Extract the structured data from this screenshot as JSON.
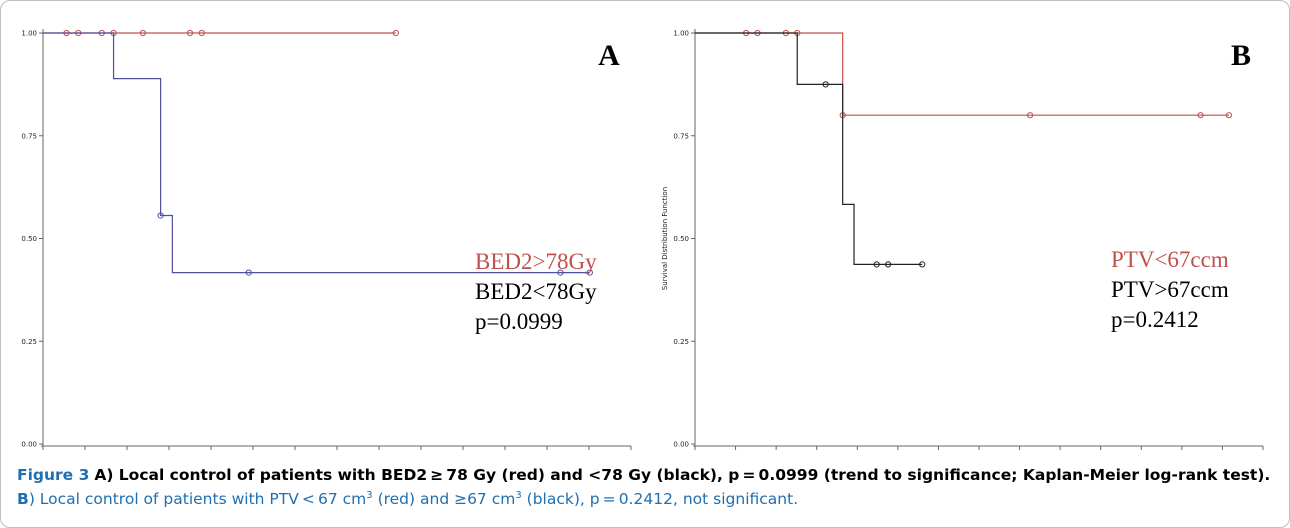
{
  "colors": {
    "red": "#c0504d",
    "blue": "#4f4f9f",
    "black": "#222222",
    "accent": "#1f6fb2"
  },
  "chart_data": [
    {
      "type": "line",
      "step": true,
      "panel_letter": "A",
      "ylim": [
        0,
        1
      ],
      "xlim": [
        0,
        1
      ],
      "yticks": [
        "0.00",
        "0.25",
        "0.50",
        "0.75",
        "1.00"
      ],
      "ylabel": "",
      "series": [
        {
          "color": "#c0504d",
          "steps": [
            [
              0.0,
              1.0
            ],
            [
              0.6,
              1.0
            ]
          ],
          "censors": [
            [
              0.04,
              1.0
            ],
            [
              0.06,
              1.0
            ],
            [
              0.1,
              1.0
            ],
            [
              0.12,
              1.0
            ],
            [
              0.17,
              1.0
            ],
            [
              0.25,
              1.0
            ],
            [
              0.27,
              1.0
            ],
            [
              0.6,
              1.0
            ]
          ]
        },
        {
          "color": "#4f4f9f",
          "steps": [
            [
              0.0,
              1.0
            ],
            [
              0.12,
              0.889
            ],
            [
              0.2,
              0.556
            ],
            [
              0.22,
              0.417
            ],
            [
              0.93,
              0.417
            ]
          ],
          "censors": [
            [
              0.2,
              0.556
            ],
            [
              0.35,
              0.417
            ],
            [
              0.88,
              0.417
            ],
            [
              0.93,
              0.417
            ]
          ]
        }
      ],
      "legend": [
        {
          "label": "BED2>78Gy",
          "color": "#c0504d"
        },
        {
          "label": "BED2<78Gy",
          "color": "#000000"
        },
        {
          "label": "p=0.0999",
          "color": "#000000"
        }
      ]
    },
    {
      "type": "line",
      "step": true,
      "panel_letter": "B",
      "ylim": [
        0,
        1
      ],
      "xlim": [
        0,
        1
      ],
      "yticks": [
        "0.00",
        "0.25",
        "0.50",
        "0.75",
        "1.00"
      ],
      "ylabel": "Survival Distribution Function",
      "series": [
        {
          "color": "#c0504d",
          "steps": [
            [
              0.0,
              1.0
            ],
            [
              0.26,
              0.8
            ],
            [
              0.94,
              0.8
            ]
          ],
          "censors": [
            [
              0.09,
              1.0
            ],
            [
              0.11,
              1.0
            ],
            [
              0.16,
              1.0
            ],
            [
              0.18,
              1.0
            ],
            [
              0.26,
              0.8
            ],
            [
              0.59,
              0.8
            ],
            [
              0.89,
              0.8
            ],
            [
              0.94,
              0.8
            ]
          ]
        },
        {
          "color": "#222222",
          "steps": [
            [
              0.0,
              1.0
            ],
            [
              0.18,
              0.875
            ],
            [
              0.26,
              0.583
            ],
            [
              0.28,
              0.437
            ],
            [
              0.4,
              0.437
            ]
          ],
          "censors": [
            [
              0.23,
              0.875
            ],
            [
              0.32,
              0.437
            ],
            [
              0.34,
              0.437
            ],
            [
              0.4,
              0.437
            ]
          ]
        }
      ],
      "legend": [
        {
          "label": "PTV<67ccm",
          "color": "#c0504d"
        },
        {
          "label": "PTV>67ccm",
          "color": "#000000"
        },
        {
          "label": "p=0.2412",
          "color": "#000000"
        }
      ]
    }
  ],
  "caption": {
    "figure_label": "Figure 3",
    "a_letter": "A",
    "a_text": ") Local control of patients with BED2 ≥ 78 Gy (red) and <78 Gy (black), p = 0.0999 (trend to significance; Kaplan-Meier log-rank test).",
    "b_letter": "B",
    "b_text_1": ") Local control of patients with PTV < 67 cm",
    "b_sup_1": "3",
    "b_text_2": " (red) and ≥67 cm",
    "b_sup_2": "3",
    "b_text_3": " (black), p = 0.2412, not significant."
  }
}
